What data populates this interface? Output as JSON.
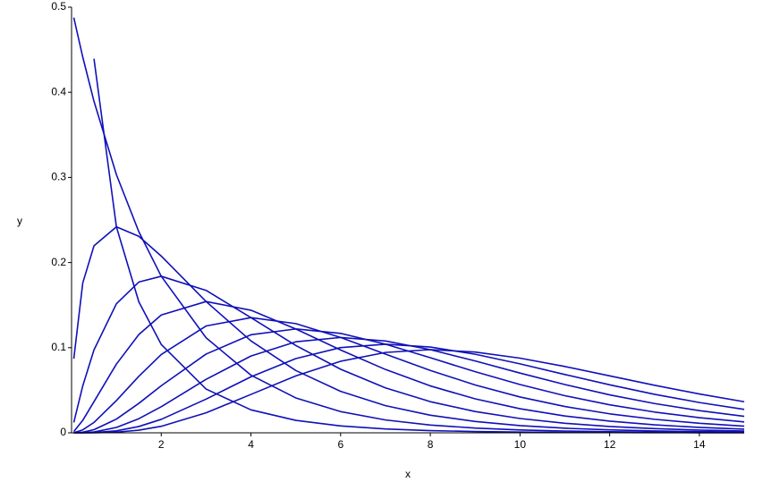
{
  "chart_data": {
    "type": "line",
    "x_label": "x",
    "y_label": "y",
    "x": [
      0.05,
      0.25,
      0.5,
      1,
      1.5,
      2,
      3,
      4,
      5,
      6,
      7,
      8,
      9,
      10,
      11,
      12,
      13,
      14,
      15
    ],
    "xlim": [
      0,
      15
    ],
    "xticks": [
      2,
      4,
      6,
      8,
      10,
      12,
      14
    ],
    "ylim": [
      0,
      0.5
    ],
    "yticks": [
      0,
      0.1,
      0.2,
      0.3,
      0.4,
      0.5
    ],
    "color": "#1010b8",
    "series": [
      {
        "values": [
          null,
          null,
          0.4394,
          0.242,
          0.1539,
          0.1038,
          0.0514,
          0.027,
          0.01464,
          0.00811,
          0.00455,
          0.00258,
          0.00148,
          0.00085,
          0.00049,
          0.00029,
          0.00017,
          0.0001,
          6e-05
        ]
      },
      {
        "values": [
          0.4877,
          0.4413,
          0.3894,
          0.3033,
          0.2362,
          0.1839,
          0.1116,
          0.0677,
          0.041,
          0.0249,
          0.0151,
          0.00916,
          0.00555,
          0.00337,
          0.00204,
          0.00124,
          0.00075,
          0.00046,
          0.00028
        ]
      },
      {
        "values": [
          0.087,
          0.176,
          0.2197,
          0.242,
          0.2308,
          0.2076,
          0.1542,
          0.108,
          0.0732,
          0.0487,
          0.0319,
          0.0207,
          0.0133,
          0.0085,
          0.0054,
          0.00343,
          0.00216,
          0.00136,
          0.00085
        ]
      },
      {
        "values": [
          0.0122,
          0.0552,
          0.0974,
          0.1516,
          0.1771,
          0.1839,
          0.1673,
          0.1353,
          0.1026,
          0.0747,
          0.0528,
          0.0366,
          0.025,
          0.0168,
          0.0112,
          0.00744,
          0.00489,
          0.00319,
          0.00207
        ]
      },
      {
        "values": [
          0.00145,
          0.01467,
          0.0366,
          0.0807,
          0.1154,
          0.1384,
          0.1542,
          0.144,
          0.122,
          0.0973,
          0.0744,
          0.0551,
          0.0399,
          0.0283,
          0.0198,
          0.0137,
          0.00937,
          0.00635,
          0.00427
        ]
      },
      {
        "values": [
          0.00015,
          0.00345,
          0.0122,
          0.0379,
          0.0664,
          0.092,
          0.1255,
          0.1353,
          0.1283,
          0.112,
          0.0925,
          0.0733,
          0.0562,
          0.0421,
          0.0309,
          0.0223,
          0.0159,
          0.0112,
          0.00778
        ]
      },
      {
        "values": [
          1e-05,
          0.00073,
          0.00366,
          0.0161,
          0.0346,
          0.0553,
          0.0925,
          0.1152,
          0.122,
          0.1168,
          0.1041,
          0.0882,
          0.0718,
          0.0567,
          0.0436,
          0.0329,
          0.0244,
          0.0178,
          0.0128
        ]
      },
      {
        "values": [
          0,
          0.00014,
          0.00101,
          0.00632,
          0.0166,
          0.0307,
          0.0628,
          0.0902,
          0.1069,
          0.112,
          0.1079,
          0.0977,
          0.0844,
          0.0702,
          0.0567,
          0.0446,
          0.0344,
          0.0261,
          0.0194
        ]
      },
      {
        "values": [
          0,
          3e-05,
          0.00026,
          0.0023,
          0.00742,
          0.01581,
          0.0396,
          0.0658,
          0.0872,
          0.1001,
          0.1041,
          0.1008,
          0.0923,
          0.081,
          0.0685,
          0.0564,
          0.0452,
          0.0356,
          0.0275
        ]
      },
      {
        "values": [
          0,
          0,
          6e-05,
          0.00079,
          0.00311,
          0.00766,
          0.0235,
          0.0451,
          0.0668,
          0.084,
          0.0944,
          0.0977,
          0.0949,
          0.0877,
          0.0779,
          0.0669,
          0.0559,
          0.0456,
          0.0365
        ]
      }
    ]
  }
}
